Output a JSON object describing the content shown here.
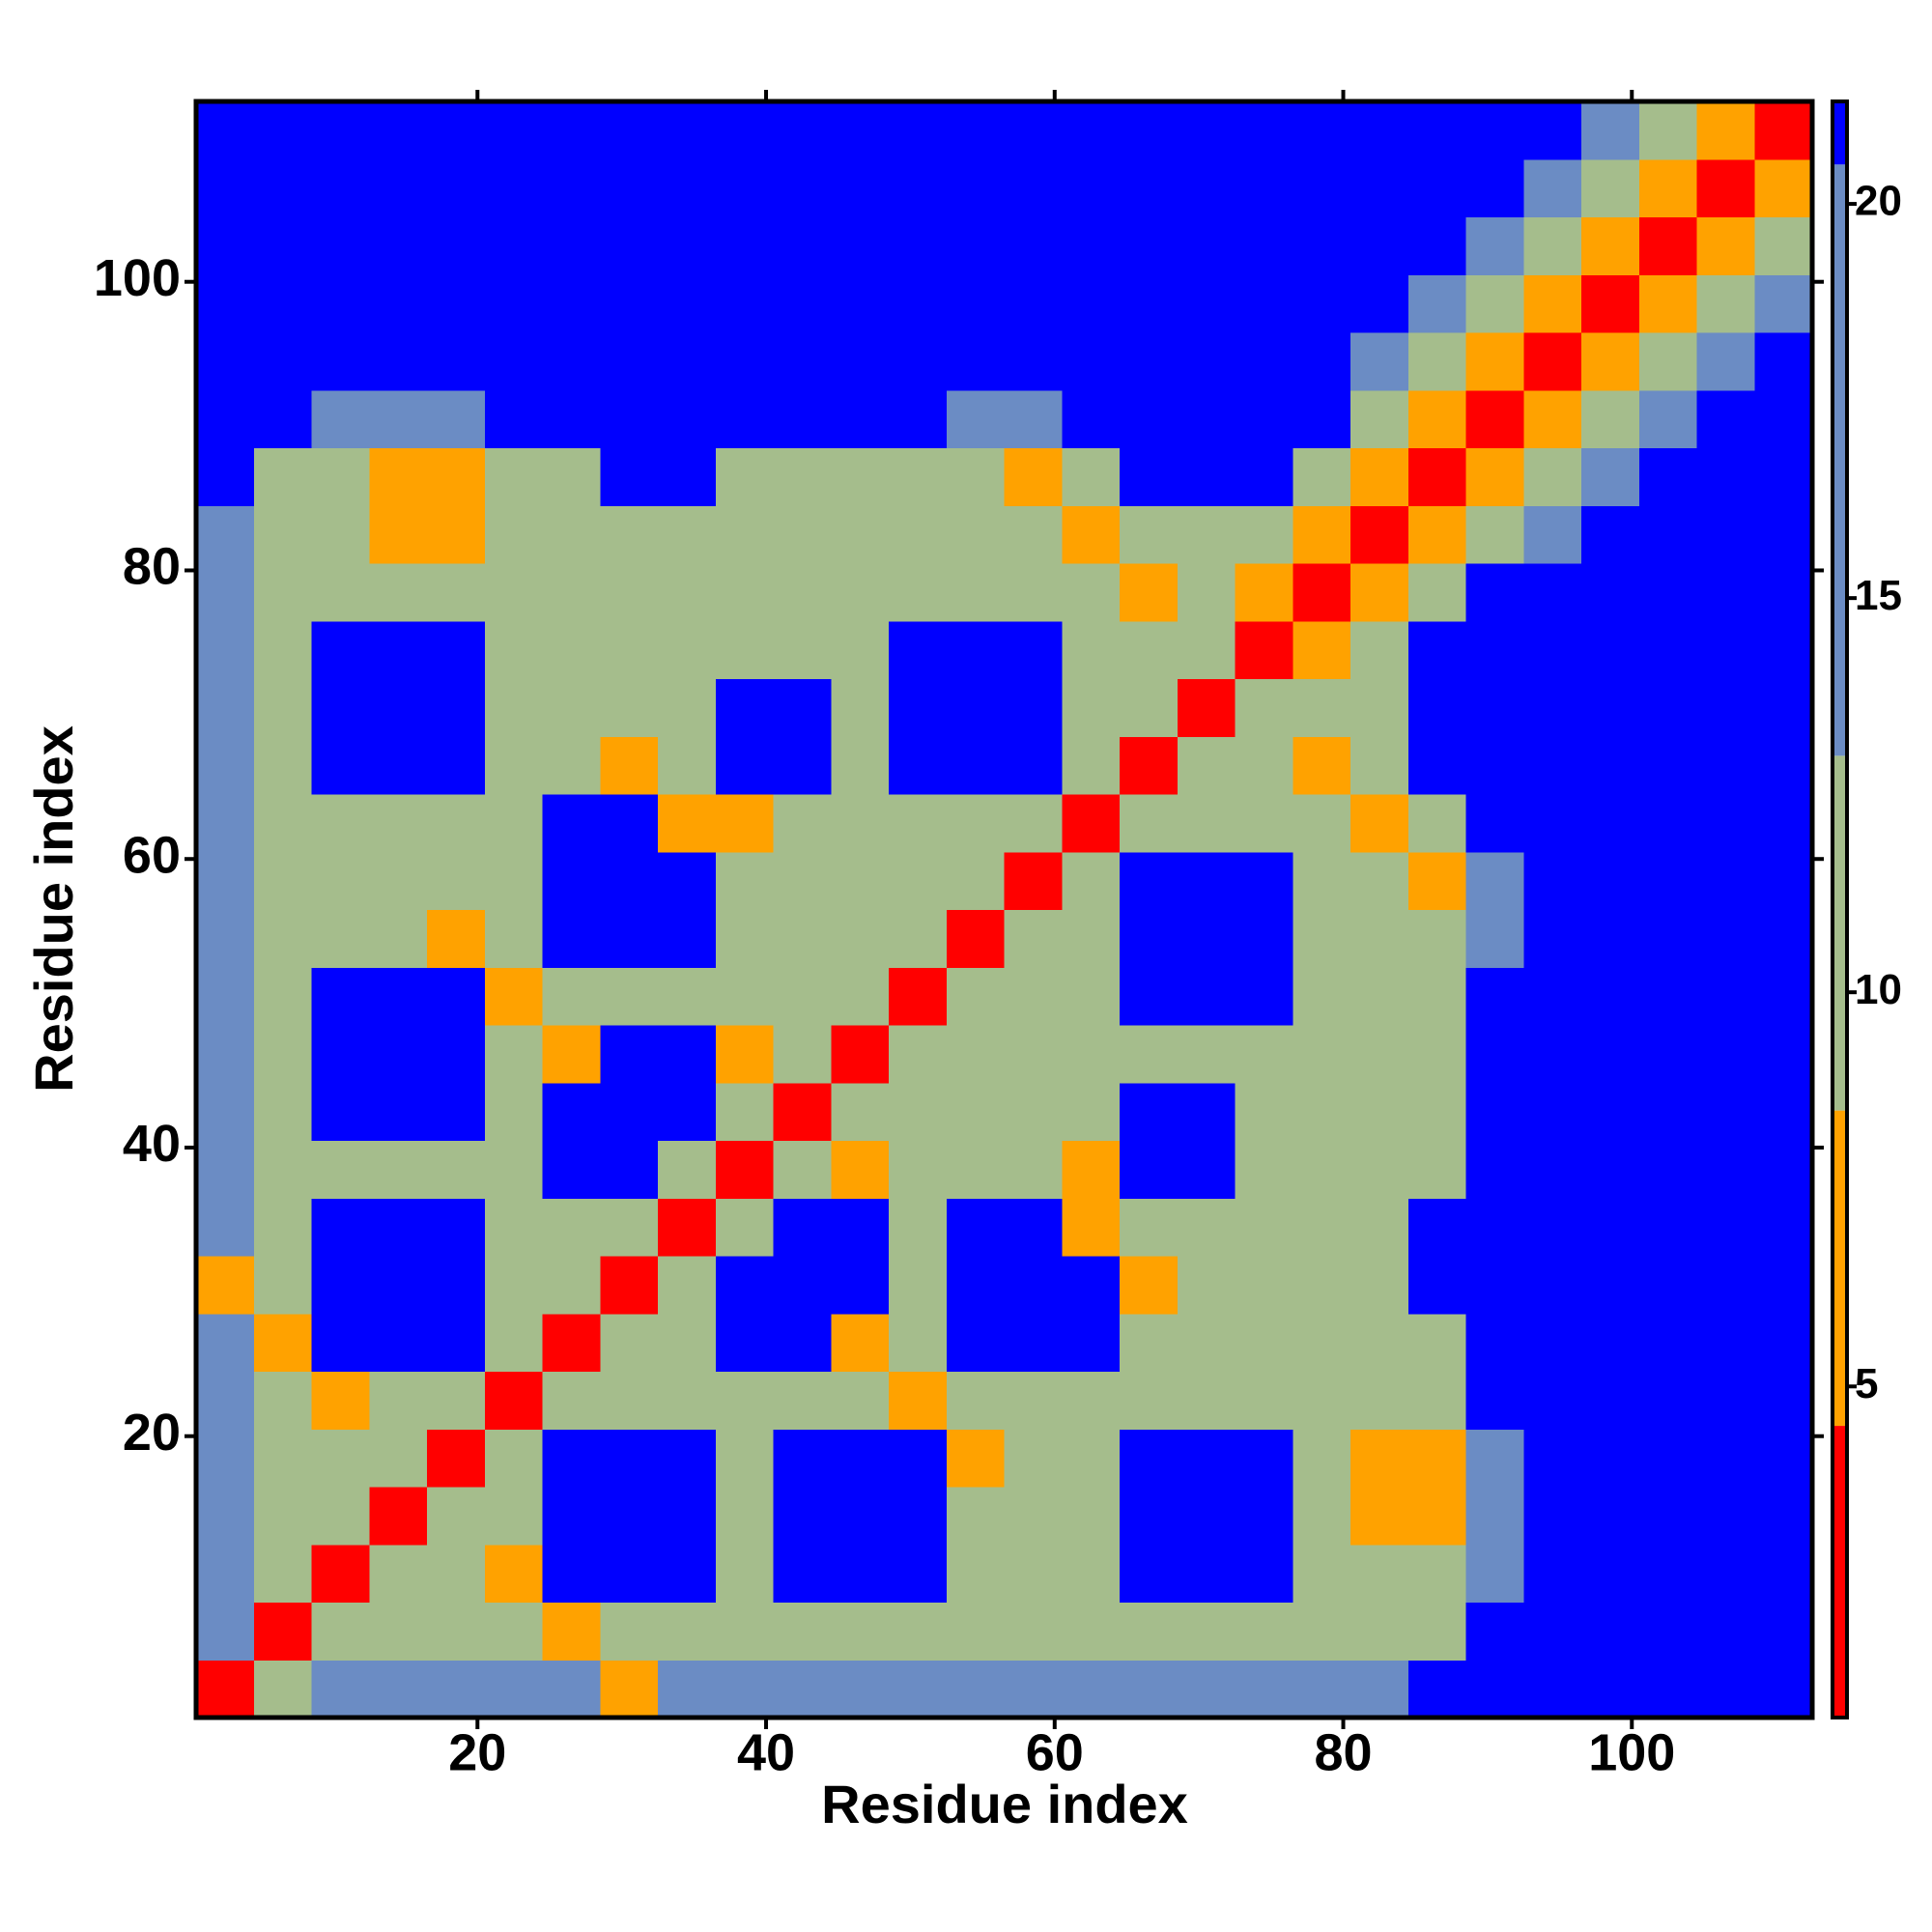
{
  "chart_data": {
    "type": "heatmap",
    "xlabel": "Residue index",
    "ylabel": "Residue index",
    "xlim": [
      0.5,
      112.5
    ],
    "ylim": [
      0.5,
      112.5
    ],
    "xticks": [
      20,
      40,
      60,
      80,
      100
    ],
    "yticks": [
      20,
      40,
      60,
      80,
      100
    ],
    "xbins": [
      0.5,
      4.5,
      8.5,
      12.5,
      16.5,
      20.5,
      24.5,
      28.5,
      32.5,
      36.5,
      40.5,
      44.5,
      48.5,
      52.5,
      56.5,
      60.5,
      64.5,
      68.5,
      72.5,
      76.5,
      80.5,
      84.5,
      88.5,
      92.5,
      96.5,
      100.5,
      104.5,
      108.5,
      112.5
    ],
    "ybins": [
      0.5,
      4.5,
      8.5,
      12.5,
      16.5,
      20.5,
      24.5,
      28.5,
      32.5,
      36.5,
      40.5,
      44.5,
      48.5,
      52.5,
      56.5,
      60.5,
      64.5,
      68.5,
      72.5,
      76.5,
      80.5,
      84.5,
      88.5,
      92.5,
      96.5,
      100.5,
      104.5,
      108.5,
      112.5
    ],
    "band_edges": [
      0.8,
      4.5,
      8.5,
      13,
      20.5,
      21.3
    ],
    "band_colors": [
      "#ff0000",
      "#ffa200",
      "#a5bd8c",
      "#6b8cc4",
      "#0000ff"
    ],
    "zticks": [
      5,
      10,
      15,
      20
    ],
    "z": [
      [
        2,
        10,
        14,
        14,
        14,
        14,
        14,
        6,
        14,
        14,
        14,
        14,
        14,
        14,
        14,
        14,
        14,
        14,
        14,
        14,
        14,
        21,
        21,
        21,
        21,
        21,
        21,
        21
      ],
      [
        14,
        2,
        10,
        12,
        12,
        12,
        6,
        12,
        12,
        12,
        12,
        12,
        12,
        12,
        12,
        12,
        12,
        12,
        12,
        12,
        12,
        12,
        21,
        21,
        21,
        21,
        21,
        21
      ],
      [
        14,
        10,
        2,
        10,
        12,
        6,
        21,
        21,
        21,
        12,
        21,
        21,
        21,
        12,
        12,
        12,
        21,
        21,
        21,
        12,
        12,
        12,
        15,
        21,
        21,
        21,
        21,
        21
      ],
      [
        14,
        12,
        10,
        2,
        10,
        12,
        21,
        21,
        21,
        12,
        21,
        21,
        21,
        12,
        12,
        12,
        21,
        21,
        21,
        12,
        6,
        6,
        15,
        21,
        21,
        21,
        21,
        21
      ],
      [
        14,
        12,
        12,
        10,
        2,
        10,
        21,
        21,
        21,
        12,
        21,
        21,
        21,
        6,
        12,
        12,
        21,
        21,
        21,
        12,
        6,
        6,
        15,
        21,
        21,
        21,
        21,
        21
      ],
      [
        14,
        12,
        6,
        12,
        10,
        2,
        10,
        12,
        12,
        12,
        12,
        12,
        6,
        12,
        12,
        12,
        12,
        12,
        12,
        12,
        12,
        12,
        21,
        21,
        21,
        21,
        21,
        21
      ],
      [
        14,
        6,
        21,
        21,
        21,
        10,
        2,
        10,
        12,
        21,
        21,
        6,
        12,
        21,
        21,
        21,
        12,
        12,
        12,
        12,
        12,
        12,
        21,
        21,
        21,
        21,
        21,
        21
      ],
      [
        6,
        12,
        21,
        21,
        21,
        12,
        10,
        2,
        10,
        21,
        21,
        21,
        12,
        21,
        21,
        21,
        6,
        12,
        12,
        12,
        12,
        21,
        21,
        21,
        21,
        21,
        21,
        21
      ],
      [
        14,
        12,
        21,
        21,
        21,
        12,
        12,
        10,
        2,
        10,
        21,
        21,
        12,
        21,
        21,
        6,
        12,
        12,
        12,
        12,
        12,
        21,
        21,
        21,
        21,
        21,
        21,
        21
      ],
      [
        14,
        12,
        12,
        12,
        12,
        12,
        21,
        21,
        10,
        2,
        10,
        6,
        12,
        12,
        12,
        6,
        21,
        21,
        12,
        12,
        12,
        12,
        21,
        21,
        21,
        21,
        21,
        21
      ],
      [
        14,
        12,
        21,
        21,
        21,
        12,
        21,
        21,
        21,
        10,
        2,
        10,
        12,
        12,
        12,
        12,
        21,
        21,
        12,
        12,
        12,
        12,
        21,
        21,
        21,
        21,
        21,
        21
      ],
      [
        14,
        12,
        21,
        21,
        21,
        12,
        6,
        21,
        21,
        6,
        10,
        2,
        10,
        12,
        12,
        12,
        12,
        12,
        12,
        12,
        12,
        12,
        21,
        21,
        21,
        21,
        21,
        21
      ],
      [
        14,
        12,
        21,
        21,
        21,
        6,
        12,
        12,
        12,
        12,
        12,
        10,
        2,
        10,
        12,
        12,
        21,
        21,
        21,
        12,
        12,
        12,
        21,
        21,
        21,
        21,
        21,
        21
      ],
      [
        14,
        12,
        12,
        12,
        6,
        12,
        21,
        21,
        21,
        12,
        12,
        12,
        10,
        2,
        10,
        12,
        21,
        21,
        21,
        12,
        12,
        12,
        15,
        21,
        21,
        21,
        21,
        21
      ],
      [
        14,
        12,
        12,
        12,
        12,
        12,
        21,
        21,
        21,
        12,
        12,
        12,
        12,
        10,
        2,
        10,
        21,
        21,
        21,
        12,
        12,
        6,
        15,
        21,
        21,
        21,
        21,
        21
      ],
      [
        14,
        12,
        12,
        12,
        12,
        12,
        21,
        21,
        6,
        6,
        12,
        12,
        12,
        12,
        10,
        2,
        10,
        12,
        12,
        12,
        6,
        12,
        21,
        21,
        21,
        21,
        21,
        21
      ],
      [
        14,
        12,
        21,
        21,
        21,
        12,
        12,
        6,
        12,
        21,
        21,
        12,
        21,
        21,
        21,
        10,
        2,
        10,
        12,
        6,
        12,
        21,
        21,
        21,
        21,
        21,
        21,
        21
      ],
      [
        14,
        12,
        21,
        21,
        21,
        12,
        12,
        12,
        12,
        21,
        21,
        12,
        21,
        21,
        21,
        12,
        10,
        2,
        10,
        12,
        12,
        21,
        21,
        21,
        21,
        21,
        21,
        21
      ],
      [
        14,
        12,
        21,
        21,
        21,
        12,
        12,
        12,
        12,
        12,
        12,
        12,
        21,
        21,
        21,
        12,
        12,
        10,
        2,
        7,
        12,
        21,
        21,
        21,
        21,
        21,
        21,
        21
      ],
      [
        14,
        12,
        12,
        12,
        12,
        12,
        12,
        12,
        12,
        12,
        12,
        12,
        12,
        12,
        12,
        12,
        6,
        12,
        7,
        2,
        7,
        12,
        21,
        21,
        21,
        21,
        21,
        21
      ],
      [
        14,
        12,
        12,
        6,
        6,
        12,
        12,
        12,
        12,
        12,
        12,
        12,
        12,
        12,
        12,
        6,
        12,
        12,
        12,
        7,
        2,
        7,
        12,
        15,
        21,
        21,
        21,
        21
      ],
      [
        21,
        12,
        12,
        6,
        6,
        12,
        12,
        21,
        21,
        12,
        12,
        12,
        12,
        12,
        6,
        12,
        21,
        21,
        21,
        12,
        7,
        2,
        7,
        12,
        15,
        21,
        21,
        21
      ],
      [
        21,
        21,
        15,
        15,
        15,
        21,
        21,
        21,
        21,
        21,
        21,
        21,
        21,
        15,
        15,
        21,
        21,
        21,
        21,
        21,
        12,
        7,
        2,
        7,
        12,
        15,
        21,
        21
      ],
      [
        21,
        21,
        21,
        21,
        21,
        21,
        21,
        21,
        21,
        21,
        21,
        21,
        21,
        21,
        21,
        21,
        21,
        21,
        21,
        21,
        15,
        12,
        7,
        2,
        7,
        12,
        15,
        21
      ],
      [
        21,
        21,
        21,
        21,
        21,
        21,
        21,
        21,
        21,
        21,
        21,
        21,
        21,
        21,
        21,
        21,
        21,
        21,
        21,
        21,
        21,
        15,
        12,
        7,
        2,
        7,
        12,
        15
      ],
      [
        21,
        21,
        21,
        21,
        21,
        21,
        21,
        21,
        21,
        21,
        21,
        21,
        21,
        21,
        21,
        21,
        21,
        21,
        21,
        21,
        21,
        21,
        15,
        12,
        7,
        2,
        7,
        12
      ],
      [
        21,
        21,
        21,
        21,
        21,
        21,
        21,
        21,
        21,
        21,
        21,
        21,
        21,
        21,
        21,
        21,
        21,
        21,
        21,
        21,
        21,
        21,
        21,
        15,
        12,
        7,
        2,
        7
      ],
      [
        21,
        21,
        21,
        21,
        21,
        21,
        21,
        21,
        21,
        21,
        21,
        21,
        21,
        21,
        21,
        21,
        21,
        21,
        21,
        21,
        21,
        21,
        21,
        21,
        15,
        12,
        7,
        2
      ]
    ]
  }
}
